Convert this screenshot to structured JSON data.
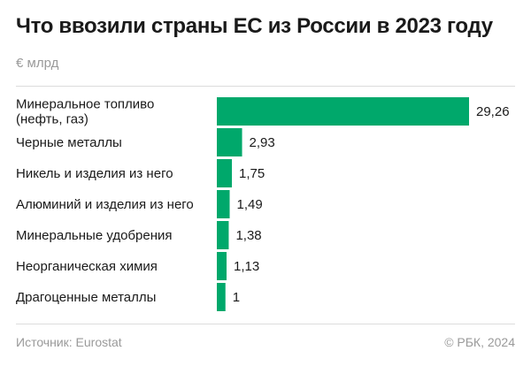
{
  "header": {
    "title": "Что ввозили страны ЕС из России в 2023 году",
    "unit": "€ млрд"
  },
  "footer": {
    "source": "Источник: Eurostat",
    "copyright": "© РБК, 2024"
  },
  "colors": {
    "bar": "#00a86b",
    "text": "#1a1a1a",
    "muted": "#9a9a9a"
  },
  "chart_data": {
    "type": "bar",
    "orientation": "horizontal",
    "categories": [
      [
        "Минеральное топливо",
        "(нефть, газ)"
      ],
      [
        "Черные металлы"
      ],
      [
        "Никель и изделия из него"
      ],
      [
        "Алюминий и изделия из него"
      ],
      [
        "Минеральные удобрения"
      ],
      [
        "Неорганическая химия"
      ],
      [
        "Драгоценные металлы"
      ]
    ],
    "values": [
      29.26,
      2.93,
      1.75,
      1.49,
      1.38,
      1.13,
      1
    ],
    "value_labels": [
      "29,26",
      "2,93",
      "1,75",
      "1,49",
      "1,38",
      "1,13",
      "1"
    ],
    "xlim": [
      0,
      29.26
    ],
    "grid": false,
    "legend": "none"
  }
}
